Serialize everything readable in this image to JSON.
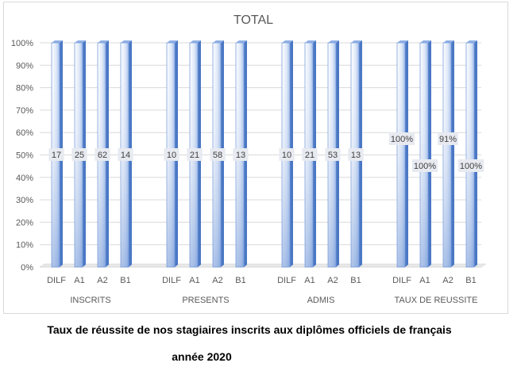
{
  "chart_data": {
    "type": "bar",
    "title": "TOTAL",
    "ylim": [
      0,
      100
    ],
    "yticks": [
      "0%",
      "10%",
      "20%",
      "30%",
      "40%",
      "50%",
      "60%",
      "70%",
      "80%",
      "90%",
      "100%"
    ],
    "grid": true,
    "legend": "none",
    "groups": [
      {
        "name": "INSCRITS",
        "bars": [
          {
            "category": "DILF",
            "value": 100,
            "label": "17"
          },
          {
            "category": "A1",
            "value": 100,
            "label": "25"
          },
          {
            "category": "A2",
            "value": 100,
            "label": "62"
          },
          {
            "category": "B1",
            "value": 100,
            "label": "14"
          }
        ]
      },
      {
        "name": "PRESENTS",
        "bars": [
          {
            "category": "DILF",
            "value": 100,
            "label": "10"
          },
          {
            "category": "A1",
            "value": 100,
            "label": "21"
          },
          {
            "category": "A2",
            "value": 100,
            "label": "58"
          },
          {
            "category": "B1",
            "value": 100,
            "label": "13"
          }
        ]
      },
      {
        "name": "ADMIS",
        "bars": [
          {
            "category": "DILF",
            "value": 100,
            "label": "10"
          },
          {
            "category": "A1",
            "value": 100,
            "label": "21"
          },
          {
            "category": "A2",
            "value": 100,
            "label": "53"
          },
          {
            "category": "B1",
            "value": 100,
            "label": "13"
          }
        ]
      },
      {
        "name": "TAUX DE REUSSITE",
        "bars": [
          {
            "category": "DILF",
            "value": 100,
            "label": "100%"
          },
          {
            "category": "A1",
            "value": 100,
            "label": "100%"
          },
          {
            "category": "A2",
            "value": 100,
            "label": "91%"
          },
          {
            "category": "B1",
            "value": 100,
            "label": "100%"
          }
        ]
      }
    ],
    "colors": {
      "bar_light": "#e3ecfa",
      "bar_mid": "#8fb0e6",
      "bar_dark": "#4a78c4",
      "grid": "#d9d9d9",
      "label_box": "#e7eaf0",
      "text": "#595959"
    }
  },
  "caption": {
    "line1": "Taux de réussite de nos stagiaires inscrits aux diplômes officiels de français",
    "line2": "année 2020"
  }
}
